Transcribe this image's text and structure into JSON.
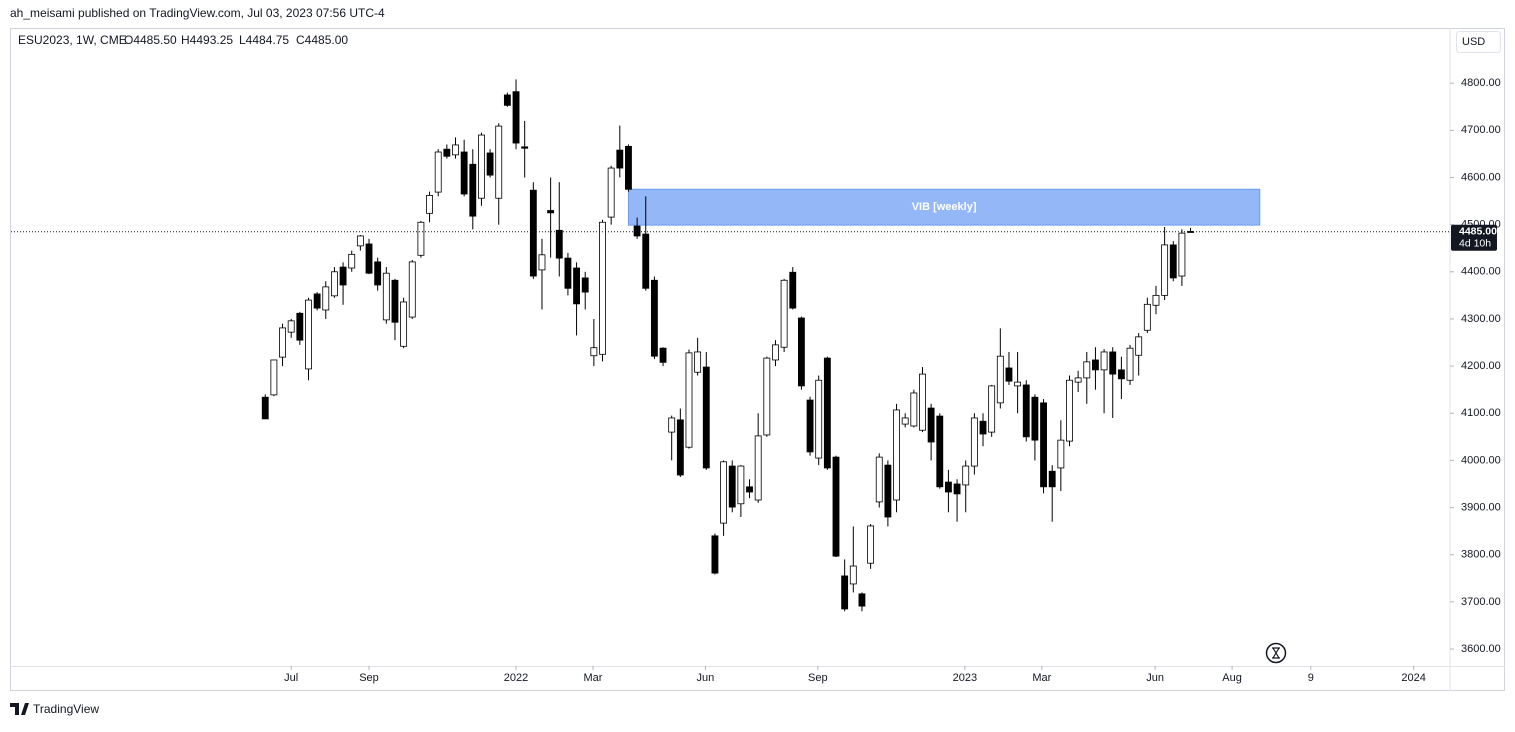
{
  "publisher": "ah_meisami published on TradingView.com, Jul 03, 2023 07:56 UTC-4",
  "brand": "TradingView",
  "header": {
    "symbol": "ESU2023, 1W, CME",
    "ohlc": [
      "O4485.50",
      "H4493.25",
      "L4484.75",
      "C4485.00"
    ],
    "currency": "USD"
  },
  "chart_data": {
    "type": "candlestick",
    "up_color": "#ffffff",
    "down_color": "#000000",
    "border_color": "#000000",
    "open": [
      4134,
      4139,
      4219,
      4272,
      4312,
      4194,
      4353,
      4319,
      4349,
      4410,
      4408,
      4455,
      4459,
      4421,
      4298,
      4382,
      4242,
      4304,
      4435,
      4524,
      4569,
      4660,
      4648,
      4654,
      4628,
      4556,
      4652,
      4556,
      4775,
      4782,
      4665,
      4573,
      4404,
      4530,
      4488,
      4429,
      4408,
      4387,
      4222,
      4225,
      4516,
      4658,
      4666,
      4497,
      4480,
      4382,
      4238,
      4060,
      4086,
      4028,
      4187,
      4198,
      3840,
      3867,
      3988,
      3908,
      3944,
      3916,
      4054,
      4213,
      4240,
      4399,
      4302,
      4128,
      4005,
      4217,
      4007,
      3755,
      3738,
      3717,
      3782,
      3912,
      3990,
      3916,
      4077,
      4073,
      4064,
      4111,
      4094,
      3954,
      3950,
      3948,
      3988,
      4083,
      4060,
      4122,
      4196,
      4158,
      4160,
      4134,
      4122,
      3977,
      3984,
      4041,
      4166,
      4175,
      4213,
      4192,
      4230,
      4192,
      4170,
      4223,
      4276,
      4329,
      4350,
      4457,
      4391,
      4485.5
    ],
    "high": [
      4140,
      4213,
      4290,
      4300,
      4315,
      4345,
      4357,
      4380,
      4410,
      4420,
      4445,
      4478,
      4470,
      4430,
      4410,
      4385,
      4345,
      4425,
      4508,
      4570,
      4660,
      4670,
      4685,
      4680,
      4660,
      4695,
      4660,
      4715,
      4780,
      4808,
      4720,
      4590,
      4470,
      4600,
      4590,
      4440,
      4420,
      4400,
      4300,
      4510,
      4625,
      4710,
      4670,
      4515,
      4560,
      4390,
      4240,
      4095,
      4110,
      4235,
      4260,
      4230,
      3845,
      4000,
      4000,
      3990,
      3960,
      4100,
      4220,
      4255,
      4385,
      4410,
      4305,
      4135,
      4180,
      4220,
      4010,
      3790,
      3860,
      3720,
      3865,
      4015,
      4000,
      4120,
      4100,
      4150,
      4198,
      4120,
      4100,
      3980,
      3960,
      4000,
      4100,
      4100,
      4160,
      4280,
      4230,
      4230,
      4170,
      4140,
      4130,
      3990,
      4085,
      4180,
      4190,
      4230,
      4240,
      4236,
      4240,
      4220,
      4245,
      4270,
      4345,
      4370,
      4495,
      4465,
      4490,
      4493.25
    ],
    "low": [
      4088,
      4136,
      4200,
      4260,
      4245,
      4170,
      4318,
      4300,
      4345,
      4330,
      4400,
      4445,
      4395,
      4360,
      4290,
      4255,
      4238,
      4300,
      4430,
      4505,
      4560,
      4640,
      4640,
      4560,
      4490,
      4540,
      4600,
      4500,
      4750,
      4660,
      4600,
      4385,
      4320,
      4430,
      4390,
      4350,
      4265,
      4320,
      4200,
      4210,
      4500,
      4600,
      4570,
      4470,
      4360,
      4215,
      4200,
      4000,
      3965,
      4025,
      4180,
      3980,
      3758,
      3840,
      3890,
      3880,
      3920,
      3910,
      4050,
      4200,
      4230,
      4320,
      4150,
      4010,
      3990,
      3980,
      3795,
      3680,
      3720,
      3680,
      3770,
      3900,
      3860,
      3890,
      4070,
      4070,
      4060,
      4000,
      3940,
      3890,
      3870,
      3890,
      3970,
      4030,
      4050,
      4110,
      4160,
      4100,
      4040,
      4000,
      3930,
      3870,
      3935,
      4030,
      4145,
      4120,
      4150,
      4100,
      4090,
      4130,
      4160,
      4180,
      4270,
      4310,
      4340,
      4380,
      4370,
      4484.75
    ],
    "close": [
      4088,
      4213,
      4281,
      4296,
      4255,
      4340,
      4323,
      4368,
      4400,
      4372,
      4437,
      4476,
      4397,
      4372,
      4397,
      4293,
      4336,
      4421,
      4505,
      4562,
      4654,
      4645,
      4669,
      4565,
      4518,
      4690,
      4605,
      4709,
      4753,
      4673,
      4662,
      4391,
      4436,
      4525,
      4429,
      4365,
      4332,
      4357,
      4239,
      4505,
      4620,
      4620,
      4575,
      4476,
      4365,
      4221,
      4208,
      4090,
      3969,
      4228,
      4230,
      3984,
      3761,
      3997,
      3901,
      3988,
      3933,
      4052,
      4217,
      4245,
      4382,
      4323,
      4158,
      4018,
      4170,
      3984,
      3797,
      3685,
      3776,
      3691,
      3861,
      4007,
      3880,
      4107,
      4090,
      4143,
      4183,
      4039,
      3944,
      3933,
      3929,
      3988,
      4090,
      4056,
      4158,
      4221,
      4168,
      4166,
      4050,
      4043,
      3944,
      3944,
      4043,
      4170,
      4175,
      4209,
      4192,
      4230,
      4183,
      4173,
      4238,
      4262,
      4331,
      4350,
      4457,
      4387,
      4482,
      4485
    ],
    "ylim": [
      3564,
      4917
    ],
    "yticks": [
      {
        "value": 3600,
        "label": "3600.00"
      },
      {
        "value": 3700,
        "label": "3700.00"
      },
      {
        "value": 3800,
        "label": "3800.00"
      },
      {
        "value": 3900,
        "label": "3900.00"
      },
      {
        "value": 4000,
        "label": "4000.00"
      },
      {
        "value": 4100,
        "label": "4100.00"
      },
      {
        "value": 4200,
        "label": "4200.00"
      },
      {
        "value": 4300,
        "label": "4300.00"
      },
      {
        "value": 4400,
        "label": "4400.00"
      },
      {
        "value": 4500,
        "label": "4500.00"
      },
      {
        "value": 4600,
        "label": "4600.00"
      },
      {
        "value": 4700,
        "label": "4700.00"
      },
      {
        "value": 4800,
        "label": "4800.00"
      }
    ],
    "xlim": [
      -29.4,
      137
    ],
    "xticks": [
      {
        "value": 3,
        "label": "Jul"
      },
      {
        "value": 12,
        "label": "Sep"
      },
      {
        "value": 29,
        "label": "2022"
      },
      {
        "value": 37.9,
        "label": "Mar"
      },
      {
        "value": 50.9,
        "label": "Jun"
      },
      {
        "value": 63.9,
        "label": "Sep"
      },
      {
        "value": 80.9,
        "label": "2023"
      },
      {
        "value": 89.8,
        "label": "Mar"
      },
      {
        "value": 102.9,
        "label": "Jun"
      },
      {
        "value": 111.8,
        "label": "Aug"
      },
      {
        "value": 120.9,
        "label": "9"
      },
      {
        "value": 132.8,
        "label": "2024"
      }
    ],
    "annotations": [
      {
        "text": "VIB [weekly]",
        "x0": 42,
        "x1": 115,
        "y0": 4499,
        "y1": 4575,
        "color": "#94b8f7"
      }
    ],
    "last_price_label": "4485.00",
    "countdown": "4d 10h"
  }
}
